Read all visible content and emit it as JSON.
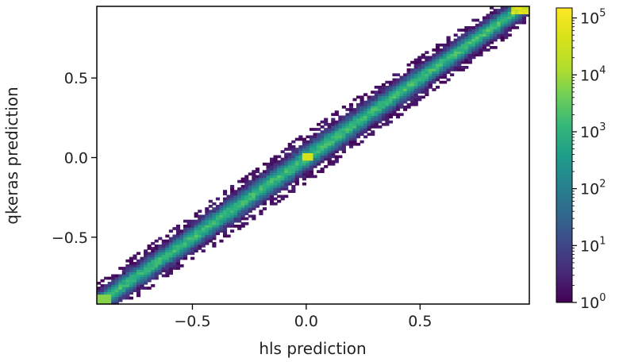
{
  "chart_data": {
    "type": "heatmap",
    "title": "",
    "xlabel": "hls prediction",
    "ylabel": "qkeras prediction",
    "xlim": [
      -0.92,
      0.98
    ],
    "ylim": [
      -0.92,
      0.95
    ],
    "x_ticks": [
      {
        "value": -0.5,
        "label": "−0.5"
      },
      {
        "value": 0.0,
        "label": "0.0"
      },
      {
        "value": 0.5,
        "label": "0.5"
      }
    ],
    "y_ticks": [
      {
        "value": -0.5,
        "label": "−0.5"
      },
      {
        "value": 0.0,
        "label": "0.0"
      },
      {
        "value": 0.5,
        "label": "0.5"
      }
    ],
    "colorbar": {
      "scale": "log",
      "colormap": "viridis",
      "range": [
        1,
        150000
      ],
      "ticks": [
        {
          "value": 1,
          "base": "10",
          "exp": "0"
        },
        {
          "value": 10,
          "base": "10",
          "exp": "1"
        },
        {
          "value": 100,
          "base": "10",
          "exp": "2"
        },
        {
          "value": 1000,
          "base": "10",
          "exp": "3"
        },
        {
          "value": 10000,
          "base": "10",
          "exp": "4"
        },
        {
          "value": 100000,
          "base": "10",
          "exp": "5"
        }
      ]
    },
    "distribution": {
      "relation": "qkeras ≈ hls",
      "bins": 120,
      "peak_points": [
        [
          0.95,
          0.95
        ],
        [
          -0.9,
          -0.9
        ],
        [
          0.01,
          0.01
        ]
      ]
    }
  }
}
